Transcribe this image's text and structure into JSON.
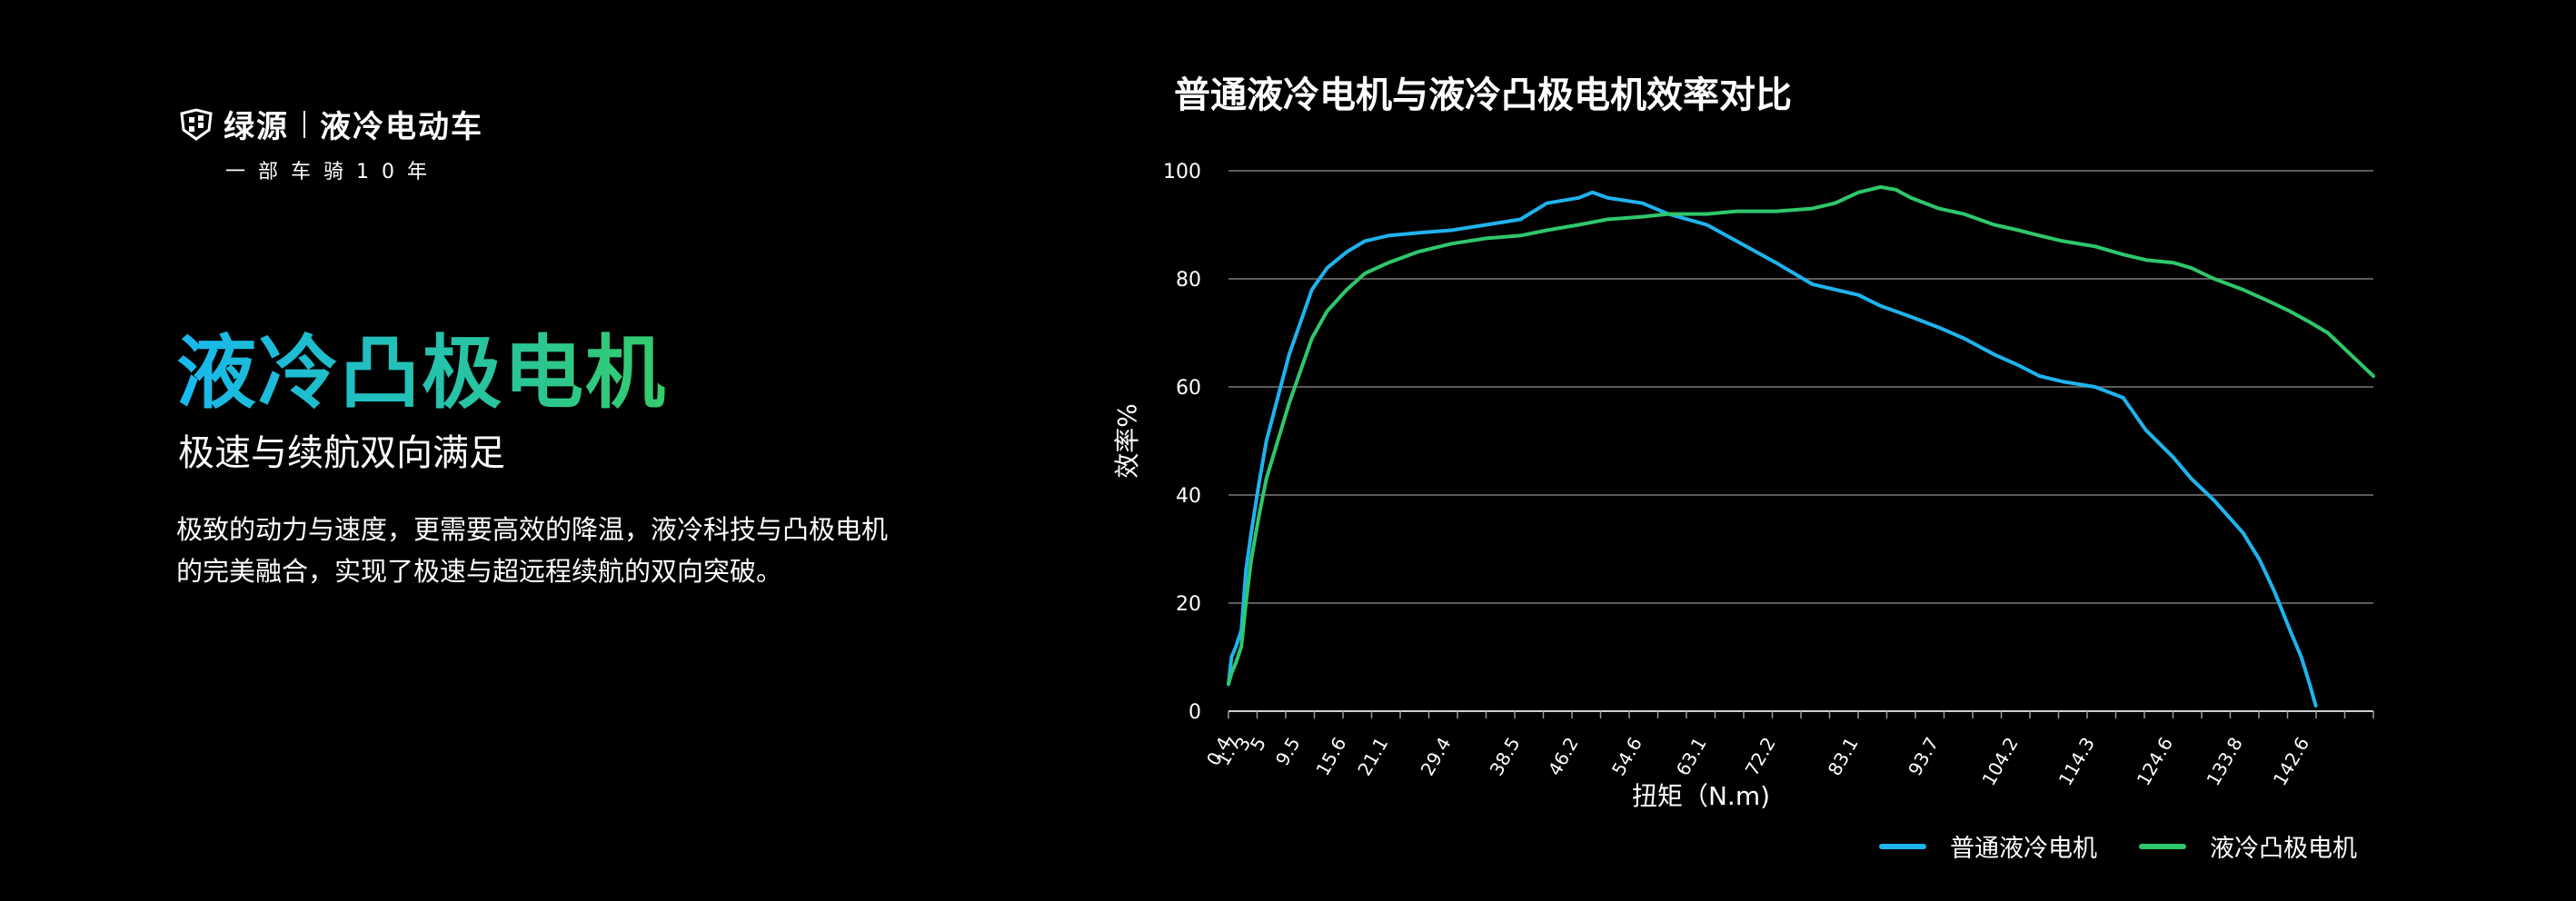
{
  "brand": {
    "name": "绿源",
    "product": "液冷电动车",
    "tagline": "一部车骑10年"
  },
  "hero": {
    "title": "液冷凸极电机",
    "subtitle": "极速与续航双向满足",
    "description": "极致的动力与速度，更需要高效的降温，液冷科技与凸极电机的完美融合，实现了极速与超远程续航的双向突破。"
  },
  "chart_data": {
    "type": "line",
    "title": "普通液冷电机与液冷凸极电机效率对比",
    "xlabel": "扭矩（N.m)",
    "ylabel": "效率%",
    "ylim": [
      0,
      100
    ],
    "yticks": [
      0,
      20,
      40,
      60,
      80,
      100
    ],
    "grid": true,
    "legend_position": "bottom-right",
    "x_tick_labels": [
      "0.4",
      "1.7",
      "3",
      "5",
      "9.5",
      "15.6",
      "21.1",
      "29.4",
      "38.5",
      "46.2",
      "54.6",
      "63.1",
      "72.2",
      "83.1",
      "93.7",
      "104.2",
      "114.3",
      "124.6",
      "133.8",
      "142.6"
    ],
    "x_tick_index": [
      0.4,
      1.7,
      3,
      5,
      9.5,
      15.6,
      21.1,
      29.4,
      38.5,
      46.2,
      54.6,
      63.1,
      72.2,
      83.1,
      93.7,
      104.2,
      114.3,
      124.6,
      133.8,
      142.6
    ],
    "series": [
      {
        "name": "普通液冷电机",
        "color": "#1fb3ee",
        "x": [
          0,
          0.4,
          1.0,
          1.7,
          2.3,
          3,
          4,
          5,
          6.5,
          8,
          9.5,
          11,
          13,
          15.6,
          18,
          21.1,
          25,
          29.4,
          34,
          38.5,
          42,
          46.2,
          48,
          50,
          54.6,
          58,
          63.1,
          67,
          72.2,
          77,
          83.1,
          86,
          90,
          93.7,
          97,
          101,
          104.2,
          107,
          110,
          114.3,
          118,
          121,
          124.6,
          127,
          130,
          133.8,
          136,
          138,
          140,
          141.5,
          142.6,
          143.4
        ],
        "y": [
          5,
          10,
          12,
          15,
          26,
          33,
          42,
          50,
          58,
          66,
          72,
          78,
          82,
          85,
          87,
          88,
          88.5,
          89,
          90,
          91,
          94,
          95,
          96,
          95,
          94,
          92,
          90,
          87,
          83,
          79,
          77,
          75,
          73,
          71,
          69,
          66,
          64,
          62,
          61,
          60,
          58,
          52,
          47,
          43,
          39,
          33,
          28,
          22,
          15,
          10,
          5,
          1
        ]
      },
      {
        "name": "液冷凸极电机",
        "color": "#2fc76b",
        "x": [
          0,
          0.4,
          1.0,
          1.7,
          2.3,
          3,
          4,
          5,
          6.5,
          8,
          9.5,
          11,
          13,
          15.6,
          18,
          21.1,
          25,
          29.4,
          34,
          38.5,
          42,
          46.2,
          50,
          54.6,
          58,
          63.1,
          67,
          72.2,
          77,
          80,
          83.1,
          86,
          88,
          90,
          93.7,
          97,
          101,
          104.2,
          107,
          110,
          114.3,
          118,
          121,
          124.6,
          127,
          130,
          133.8,
          137,
          140,
          142.6,
          145,
          148,
          151
        ],
        "y": [
          5,
          7,
          9,
          12,
          20,
          28,
          36,
          43,
          50,
          57,
          63,
          69,
          74,
          78,
          81,
          83,
          85,
          86.5,
          87.5,
          88,
          89,
          90,
          91,
          91.5,
          92,
          92,
          92.5,
          92.5,
          93,
          94,
          96,
          97,
          96.5,
          95,
          93,
          92,
          90,
          89,
          88,
          87,
          86,
          84.5,
          83.5,
          83,
          82,
          80,
          78,
          76,
          74,
          72,
          70,
          66,
          62
        ]
      }
    ]
  }
}
